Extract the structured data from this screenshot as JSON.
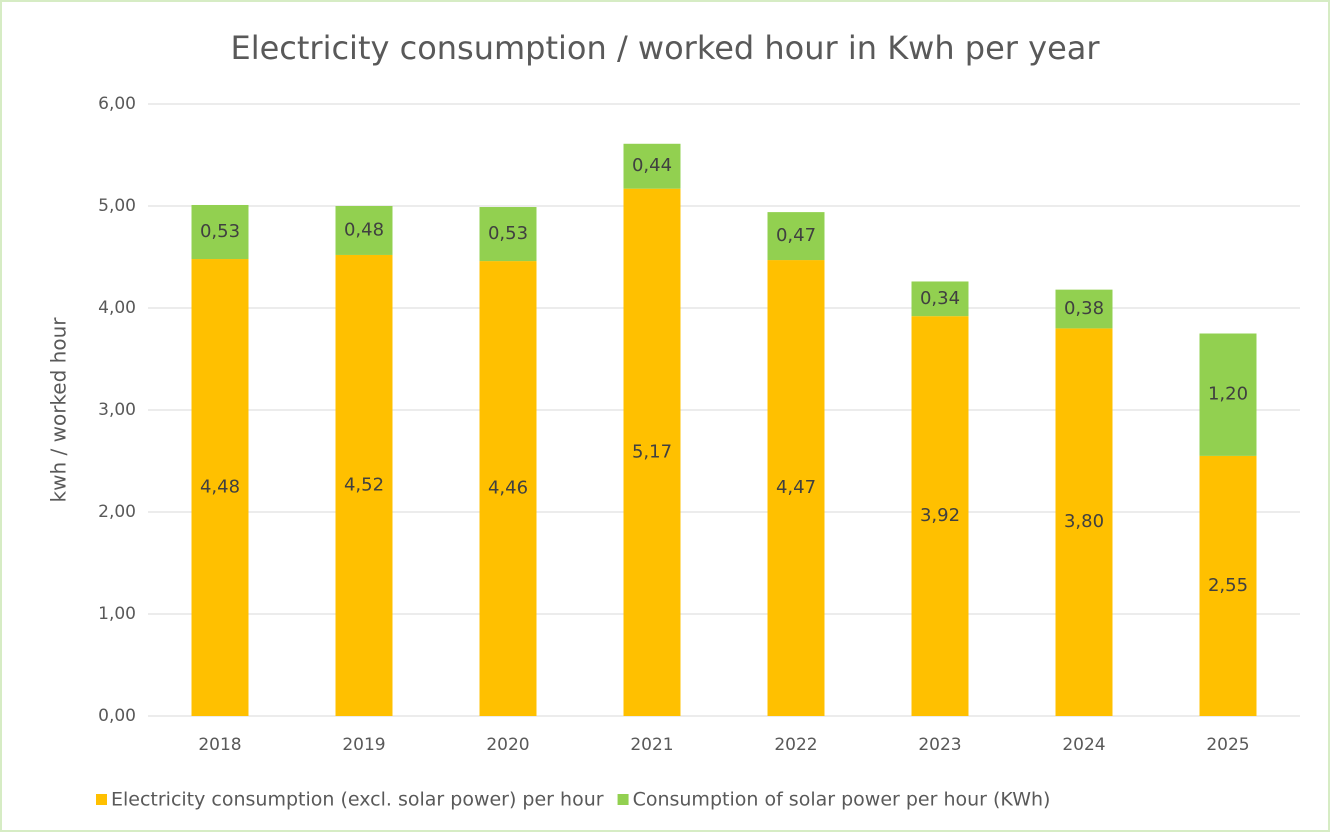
{
  "chart_data": {
    "type": "stacked_bar",
    "title": "Electricity consumption / worked hour in Kwh per year",
    "y_label": "kwh / worked hour",
    "categories": [
      "2018",
      "2019",
      "2020",
      "2021",
      "2022",
      "2023",
      "2024",
      "2025"
    ],
    "series": [
      {
        "name": "Electricity consumption (excl. solar power) per hour",
        "color": "#ffc000",
        "values": [
          4.48,
          4.52,
          4.46,
          5.17,
          4.47,
          3.92,
          3.8,
          2.55
        ],
        "value_labels": [
          "4,48",
          "4,52",
          "4,46",
          "5,17",
          "4,47",
          "3,92",
          "3,80",
          "2,55"
        ]
      },
      {
        "name": "Consumption of solar power per hour (KWh)",
        "color": "#92d050",
        "values": [
          0.53,
          0.48,
          0.53,
          0.44,
          0.47,
          0.34,
          0.38,
          1.2
        ],
        "value_labels": [
          "0,53",
          "0,48",
          "0,53",
          "0,44",
          "0,47",
          "0,34",
          "0,38",
          "1,20"
        ]
      }
    ],
    "ylim": [
      0,
      6
    ],
    "yticks": [
      {
        "value": 0,
        "label": "0,00"
      },
      {
        "value": 1,
        "label": "1,00"
      },
      {
        "value": 2,
        "label": "2,00"
      },
      {
        "value": 3,
        "label": "3,00"
      },
      {
        "value": 4,
        "label": "4,00"
      },
      {
        "value": 5,
        "label": "5,00"
      },
      {
        "value": 6,
        "label": "6,00"
      }
    ],
    "grid": true,
    "legend": "bottom"
  }
}
